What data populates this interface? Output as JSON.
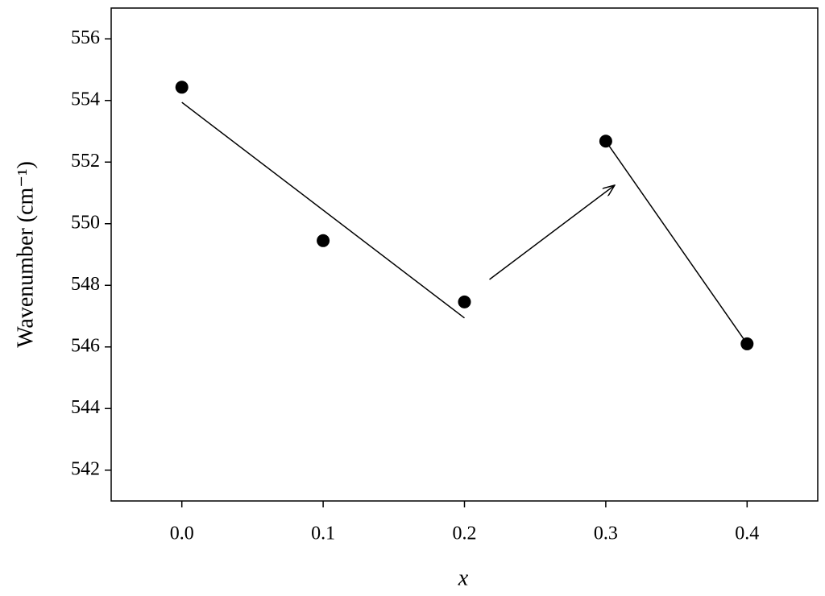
{
  "chart_data": {
    "type": "scatter",
    "x_label": "x",
    "y_label": "Wavenumber (cm⁻¹)",
    "xlim": [
      -0.05,
      0.45
    ],
    "ylim": [
      541,
      557
    ],
    "xticks": [
      {
        "value": 0,
        "label": "0.0"
      },
      0.1,
      0.2,
      0.3,
      0.4
    ],
    "yticks": [
      542,
      544,
      546,
      548,
      550,
      552,
      554,
      556
    ],
    "grid": false,
    "series": [
      {
        "color": "#000000",
        "x": [
          0,
          0.1,
          0.2,
          0.3,
          0.4
        ],
        "values": [
          554.43,
          549.45,
          547.46,
          552.68,
          546.1
        ]
      }
    ],
    "fit_lines": [
      {
        "color": "#000000",
        "x": [
          0,
          0.2
        ],
        "values": [
          553.94,
          546.94
        ]
      },
      {
        "color": "#000000",
        "x": [
          0.3,
          0.4
        ],
        "values": [
          552.68,
          546.1
        ]
      }
    ],
    "arrow": {
      "color": "#000000",
      "x": [
        0.2177,
        0.3063
      ],
      "values": [
        548.19,
        551.25
      ]
    }
  }
}
